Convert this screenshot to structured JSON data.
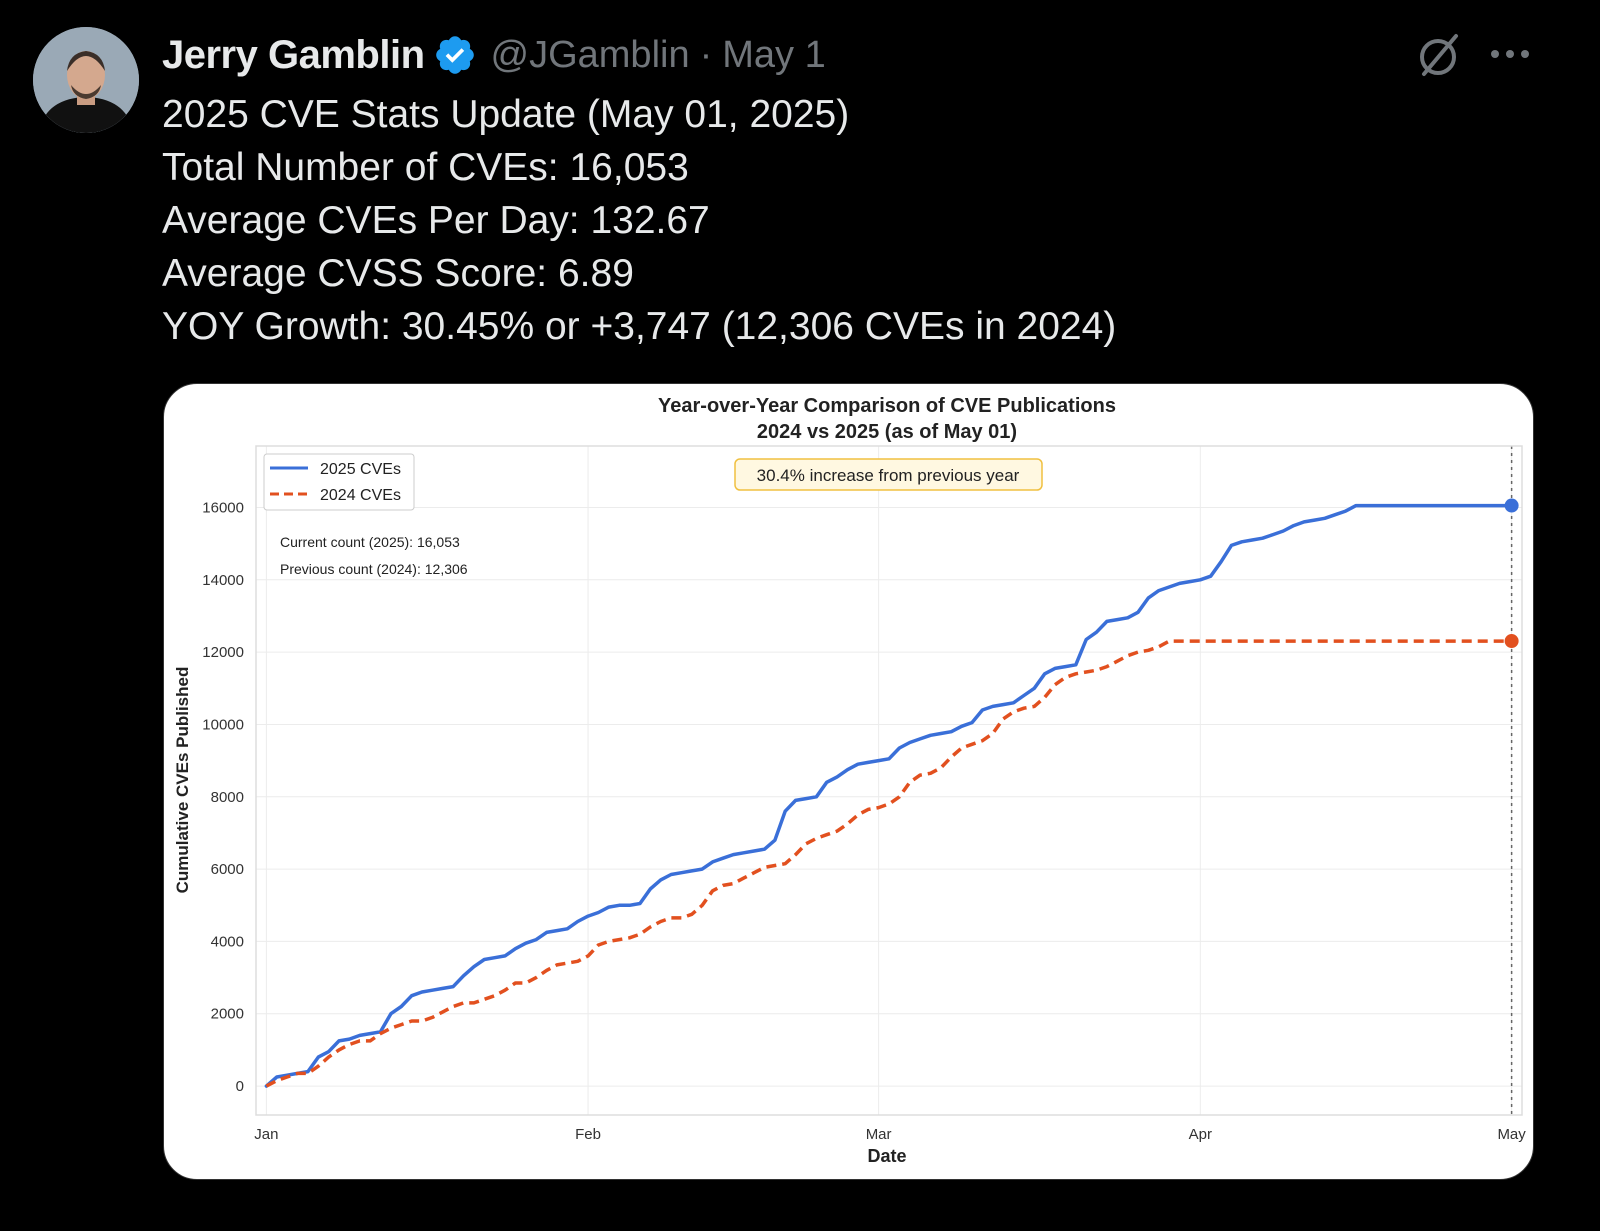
{
  "author": {
    "display_name": "Jerry Gamblin",
    "handle": "@JGamblin",
    "separator": "·",
    "date": "May 1"
  },
  "tweet": {
    "lines": [
      "2025 CVE Stats Update (May 01, 2025)",
      "Total Number of CVEs: 16,053",
      "Average CVEs Per Day: 132.67",
      "Average CVSS Score: 6.89",
      "YOY Growth: 30.45% or +3,747 (12,306 CVEs in 2024)"
    ]
  },
  "icons": {
    "verified": "verified-badge-icon",
    "grok": "grok-icon",
    "more": "more-icon"
  },
  "colors": {
    "verified": "#1d9bf0",
    "series_2025": "#3a6fd8",
    "series_2024": "#e2501f"
  },
  "chart_data": {
    "type": "line",
    "title": "Year-over-Year Comparison of CVE Publications",
    "subtitle": "2024 vs 2025 (as of May 01)",
    "xlabel": "Date",
    "ylabel": "Cumulative CVEs Published",
    "xlim": [
      0,
      122
    ],
    "ylim": [
      -800,
      17700
    ],
    "x_ticks": [
      {
        "label": "Jan",
        "value": 1
      },
      {
        "label": "Feb",
        "value": 32
      },
      {
        "label": "Mar",
        "value": 60
      },
      {
        "label": "Apr",
        "value": 91
      },
      {
        "label": "May",
        "value": 121
      }
    ],
    "y_ticks": [
      0,
      2000,
      4000,
      6000,
      8000,
      10000,
      12000,
      14000,
      16000
    ],
    "grid": true,
    "legend": "top-left",
    "annotations": {
      "box": "30.4% increase from previous year",
      "current": "Current count (2025): 16,053",
      "previous": "Previous count (2024): 12,306"
    },
    "series": [
      {
        "name": "2025 CVEs",
        "style": "solid",
        "x": [
          1,
          2,
          3,
          4,
          5,
          6,
          7,
          8,
          9,
          10,
          11,
          12,
          13,
          14,
          15,
          16,
          17,
          18,
          19,
          20,
          21,
          22,
          23,
          24,
          25,
          26,
          27,
          28,
          29,
          30,
          31,
          32,
          33,
          34,
          35,
          36,
          37,
          38,
          39,
          40,
          41,
          42,
          43,
          44,
          45,
          46,
          47,
          48,
          49,
          50,
          51,
          52,
          53,
          54,
          55,
          56,
          57,
          58,
          59,
          60,
          61,
          62,
          63,
          64,
          65,
          66,
          67,
          68,
          69,
          70,
          71,
          72,
          73,
          74,
          75,
          76,
          77,
          78,
          79,
          80,
          81,
          82,
          83,
          84,
          85,
          86,
          87,
          88,
          89,
          90,
          91,
          92,
          93,
          94,
          95,
          96,
          97,
          98,
          99,
          100,
          101,
          102,
          103,
          104,
          105,
          106,
          107,
          108,
          109,
          110,
          111,
          112,
          113,
          114,
          115,
          116,
          117,
          118,
          119,
          120,
          121
        ],
        "values": [
          0,
          250,
          300,
          350,
          400,
          800,
          950,
          1250,
          1300,
          1400,
          1450,
          1500,
          2000,
          2200,
          2500,
          2600,
          2650,
          2700,
          2750,
          3050,
          3300,
          3500,
          3550,
          3600,
          3800,
          3950,
          4050,
          4250,
          4300,
          4350,
          4550,
          4700,
          4800,
          4950,
          5000,
          5000,
          5050,
          5450,
          5700,
          5850,
          5900,
          5950,
          6000,
          6200,
          6300,
          6400,
          6450,
          6500,
          6550,
          6800,
          7600,
          7900,
          7950,
          8000,
          8400,
          8550,
          8750,
          8900,
          8950,
          9000,
          9050,
          9350,
          9500,
          9600,
          9700,
          9750,
          9800,
          9950,
          10050,
          10400,
          10500,
          10550,
          10600,
          10800,
          11000,
          11400,
          11550,
          11600,
          11650,
          12350,
          12550,
          12850,
          12900,
          12950,
          13100,
          13500,
          13700,
          13800,
          13900,
          13950,
          14000,
          14100,
          14500,
          14950,
          15050,
          15100,
          15150,
          15250,
          15350,
          15500,
          15600,
          15650,
          15700,
          15800,
          15900,
          16053,
          16053,
          16053,
          16053,
          16053,
          16053,
          16053,
          16053,
          16053,
          16053,
          16053,
          16053,
          16053,
          16053,
          16053,
          16053
        ]
      },
      {
        "name": "2024 CVEs",
        "style": "dashed",
        "x": [
          1,
          2,
          3,
          4,
          5,
          6,
          7,
          8,
          9,
          10,
          11,
          12,
          13,
          14,
          15,
          16,
          17,
          18,
          19,
          20,
          21,
          22,
          23,
          24,
          25,
          26,
          27,
          28,
          29,
          30,
          31,
          32,
          33,
          34,
          35,
          36,
          37,
          38,
          39,
          40,
          41,
          42,
          43,
          44,
          45,
          46,
          47,
          48,
          49,
          50,
          51,
          52,
          53,
          54,
          55,
          56,
          57,
          58,
          59,
          60,
          61,
          62,
          63,
          64,
          65,
          66,
          67,
          68,
          69,
          70,
          71,
          72,
          73,
          74,
          75,
          76,
          77,
          78,
          79,
          80,
          81,
          82,
          83,
          84,
          85,
          86,
          87,
          88,
          89,
          90,
          91,
          92,
          93,
          94,
          95,
          96,
          97,
          98,
          99,
          100,
          101,
          102,
          103,
          104,
          105,
          106,
          107,
          108,
          109,
          110,
          111,
          112,
          113,
          114,
          115,
          116,
          117,
          118,
          119,
          120,
          121
        ],
        "values": [
          0,
          150,
          250,
          350,
          350,
          550,
          800,
          1000,
          1150,
          1250,
          1250,
          1450,
          1600,
          1700,
          1800,
          1800,
          1900,
          2050,
          2200,
          2300,
          2300,
          2400,
          2500,
          2650,
          2850,
          2850,
          3000,
          3200,
          3350,
          3400,
          3450,
          3600,
          3900,
          4000,
          4050,
          4100,
          4200,
          4400,
          4550,
          4650,
          4650,
          4750,
          5000,
          5400,
          5550,
          5600,
          5750,
          5900,
          6050,
          6100,
          6150,
          6400,
          6700,
          6850,
          6950,
          7050,
          7250,
          7500,
          7650,
          7700,
          7800,
          8000,
          8400,
          8600,
          8650,
          8800,
          9100,
          9350,
          9450,
          9550,
          9750,
          10150,
          10350,
          10450,
          10500,
          10750,
          11100,
          11300,
          11400,
          11450,
          11500,
          11600,
          11750,
          11900,
          12000,
          12050,
          12150,
          12306,
          12306,
          12306,
          12306,
          12306,
          12306,
          12306,
          12306,
          12306,
          12306,
          12306,
          12306,
          12306,
          12306,
          12306,
          12306,
          12306,
          12306,
          12306,
          12306,
          12306,
          12306,
          12306,
          12306,
          12306,
          12306,
          12306,
          12306,
          12306,
          12306,
          12306,
          12306,
          12306,
          12306
        ]
      }
    ]
  }
}
